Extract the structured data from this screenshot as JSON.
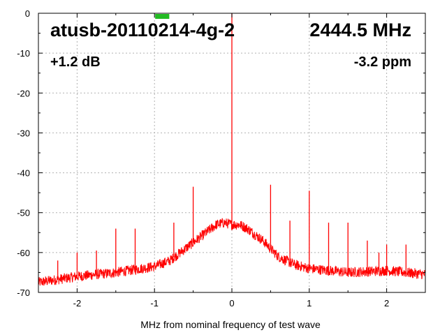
{
  "chart_data": {
    "type": "line",
    "title": "atusb-20110214-4g-2",
    "frequency_label": "2444.5 MHz",
    "power_offset_label": "+1.2 dB",
    "ppm_label": "-3.2 ppm",
    "xlabel": "MHz from nominal frequency of test wave",
    "ylabel": "",
    "xlim": [
      -2.5,
      2.5
    ],
    "ylim": [
      -70,
      0
    ],
    "x_ticks": [
      -2,
      -1,
      0,
      1,
      2
    ],
    "y_ticks": [
      0,
      -10,
      -20,
      -30,
      -40,
      -50,
      -60,
      -70
    ],
    "grid": true,
    "line_color": "#ff0000",
    "indicator_color": "#22bb22",
    "indicator_x_range": [
      -1.0,
      -0.8
    ],
    "series": [
      {
        "noise_floor": {
          "x": [
            -2.5,
            -2.0,
            -1.5,
            -1.0,
            -0.8,
            -0.6,
            -0.4,
            -0.2,
            -0.1,
            0.0,
            0.1,
            0.2,
            0.4,
            0.6,
            0.8,
            1.0,
            1.5,
            2.0,
            2.5
          ],
          "y": [
            -67.5,
            -66,
            -65,
            -63.5,
            -62,
            -59,
            -56,
            -53,
            -52.5,
            -53,
            -53,
            -54,
            -57,
            -61,
            -63,
            -64,
            -65,
            -64.5,
            -65.5
          ]
        },
        "spurs": [
          {
            "x": -2.25,
            "y": -62
          },
          {
            "x": -2.0,
            "y": -60
          },
          {
            "x": -1.75,
            "y": -59.5
          },
          {
            "x": -1.5,
            "y": -54
          },
          {
            "x": -1.25,
            "y": -54
          },
          {
            "x": -0.75,
            "y": -52.5
          },
          {
            "x": -0.5,
            "y": -43.5
          },
          {
            "x": 0.0,
            "y": 0
          },
          {
            "x": 0.5,
            "y": -43
          },
          {
            "x": 0.75,
            "y": -52
          },
          {
            "x": 1.0,
            "y": -44.5
          },
          {
            "x": 1.25,
            "y": -52.5
          },
          {
            "x": 1.5,
            "y": -52.5
          },
          {
            "x": 1.75,
            "y": -57
          },
          {
            "x": 1.9,
            "y": -60
          },
          {
            "x": 2.0,
            "y": -58
          },
          {
            "x": 2.25,
            "y": -58
          }
        ]
      }
    ]
  }
}
